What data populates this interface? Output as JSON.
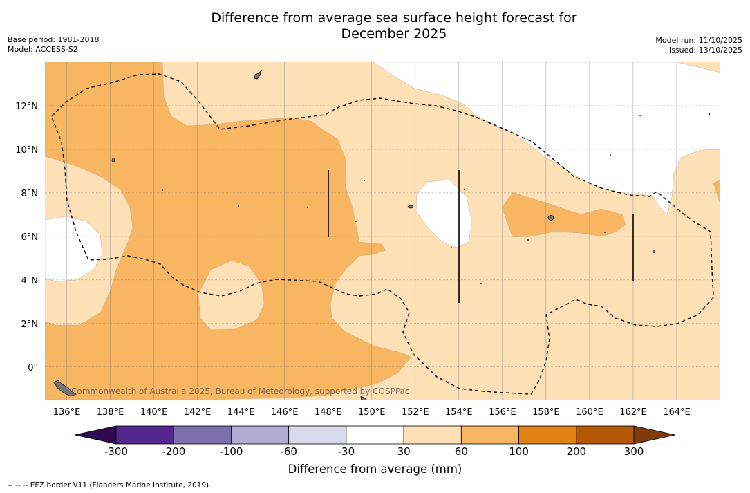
{
  "title": {
    "line1": "Difference from average sea surface height forecast for",
    "line2": "December 2025"
  },
  "meta_left": {
    "base_period": "Base period: 1981-2018",
    "model": "Model: ACCESS-S2"
  },
  "meta_right": {
    "model_run": "Model run: 11/10/2025",
    "issued": "Issued: 13/10/2025"
  },
  "map": {
    "lon_labels": [
      "136°E",
      "138°E",
      "140°E",
      "142°E",
      "144°E",
      "146°E",
      "148°E",
      "150°E",
      "152°E",
      "154°E",
      "156°E",
      "158°E",
      "160°E",
      "162°E",
      "164°E"
    ],
    "lat_labels": [
      "12°N",
      "10°N",
      "8°N",
      "6°N",
      "4°N",
      "2°N",
      "0°"
    ],
    "lon_range": [
      135,
      166
    ],
    "lat_range": [
      -1.5,
      14
    ],
    "credit": "Commonwealth of Australia 2025, Bureau of Meteorology, supported by COSPPac",
    "contour_fill_colors": {
      "30_to_60": "#fde0b6",
      "60_to_100": "#f9b662",
      "neutral": "#ffffff"
    }
  },
  "colorbar": {
    "ticks": [
      "-300",
      "-200",
      "-100",
      "-60",
      "-30",
      "30",
      "60",
      "100",
      "200",
      "300"
    ],
    "colors": [
      "#2d0a4f",
      "#54278f",
      "#7b6fac",
      "#b2abd2",
      "#d8daeb",
      "#ffffff",
      "#fde0b6",
      "#f9b662",
      "#e08314",
      "#b35806",
      "#7f3b08"
    ],
    "label": "Difference from average (mm)"
  },
  "footnote": "--  --  -- EEZ border V11 (Flanders Marine Institute, 2019)."
}
